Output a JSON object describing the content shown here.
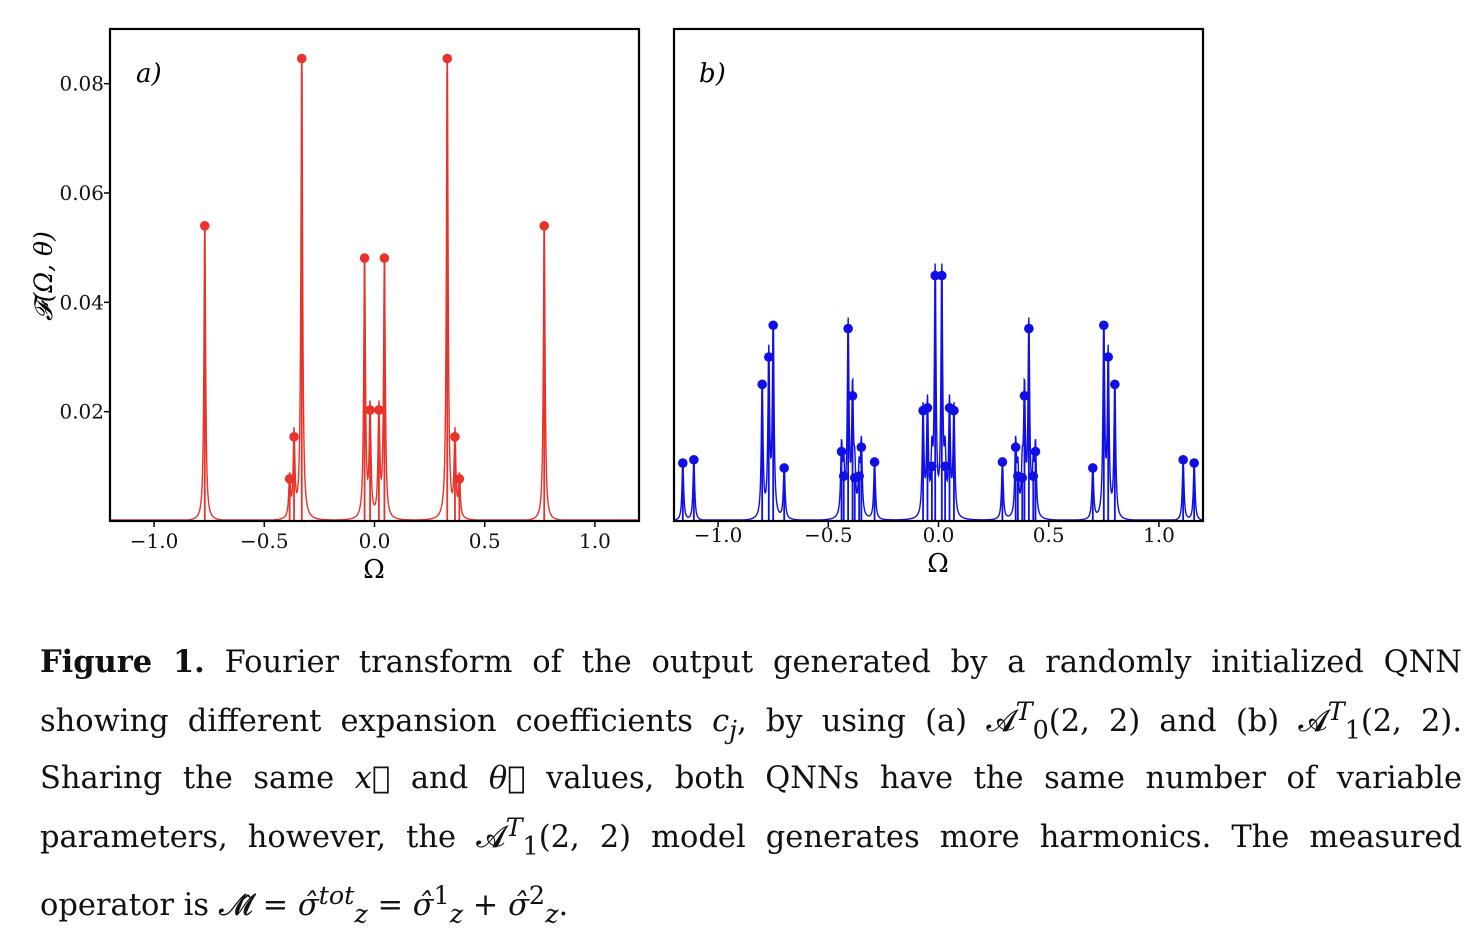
{
  "chart_data": [
    {
      "type": "stem",
      "panel_label": "a)",
      "xlabel": "Ω",
      "ylabel": "𝓕(Ω, θ)",
      "xlim": [
        -1.2,
        1.2
      ],
      "ylim": [
        0.0,
        0.09
      ],
      "xticks": [
        -1.0,
        -0.5,
        0.0,
        0.5,
        1.0
      ],
      "xtick_labels": [
        "−1.0",
        "−0.5",
        "0.0",
        "0.5",
        "1.0"
      ],
      "yticks": [
        0.02,
        0.04,
        0.06,
        0.08
      ],
      "ytick_labels": [
        "0.02",
        "0.04",
        "0.06",
        "0.08"
      ],
      "color": "#e8322a",
      "series": [
        {
          "x": [
            -0.77,
            -0.385,
            -0.365,
            -0.33,
            -0.045,
            -0.02,
            0.02,
            0.045,
            0.33,
            0.365,
            0.385,
            0.77
          ],
          "values": [
            0.054,
            0.0077,
            0.0154,
            0.0846,
            0.0481,
            0.0203,
            0.0203,
            0.0481,
            0.0846,
            0.0154,
            0.0077,
            0.054
          ]
        }
      ]
    },
    {
      "type": "stem",
      "panel_label": "b)",
      "xlabel": "Ω",
      "xlim": [
        -1.2,
        1.2
      ],
      "ylim": [
        0.0,
        0.09
      ],
      "xticks": [
        -1.0,
        -0.5,
        0.0,
        0.5,
        1.0
      ],
      "xtick_labels": [
        "−1.0",
        "−0.5",
        "0.0",
        "0.5",
        "1.0"
      ],
      "color": "#1010e6",
      "series": [
        {
          "x": [
            -1.16,
            -1.11,
            -0.8,
            -0.77,
            -0.75,
            -0.7,
            -0.44,
            -0.43,
            -0.41,
            -0.39,
            -0.38,
            -0.36,
            -0.35,
            -0.29,
            -0.07,
            -0.05,
            -0.03,
            -0.015,
            0.015,
            0.03,
            0.05,
            0.07,
            0.29,
            0.35,
            0.36,
            0.38,
            0.39,
            0.41,
            0.43,
            0.44,
            0.7,
            0.75,
            0.77,
            0.8,
            1.11,
            1.16
          ],
          "values": [
            0.0106,
            0.0112,
            0.025,
            0.03,
            0.0358,
            0.0097,
            0.0127,
            0.0082,
            0.0352,
            0.0229,
            0.0079,
            0.0082,
            0.0135,
            0.0108,
            0.0202,
            0.0207,
            0.01,
            0.0449,
            0.0449,
            0.01,
            0.0207,
            0.0202,
            0.0108,
            0.0135,
            0.0082,
            0.0079,
            0.0229,
            0.0352,
            0.0082,
            0.0127,
            0.0097,
            0.0358,
            0.03,
            0.025,
            0.0112,
            0.0106
          ]
        }
      ]
    }
  ],
  "caption": {
    "figure_label": "Figure 1.",
    "text_1": " Fourier transform of the output generated by a randomly initialized QNN showing different expansion coefficients ",
    "c_symbol": "c",
    "c_subscript": "j",
    "text_2": ", by using (a) ",
    "model_a": "𝓐",
    "model_a_sup": "T",
    "model_a_sub": "0",
    "model_a_args": "(2, 2)",
    "text_3": " and (b) ",
    "model_b": "𝓐",
    "model_b_sup": "T",
    "model_b_sub": "1",
    "model_b_args": "(2, 2)",
    "text_4": ". Sharing the same ",
    "x_vec": "x⃗",
    "text_5": " and ",
    "theta_vec": "θ⃗",
    "text_6": " values, both QNNs have the same number of variable parameters, however, the ",
    "model_c": "𝓐",
    "model_c_sup": "T",
    "model_c_sub": "1",
    "model_c_args": "(2, 2)",
    "text_7": " model generates more harmonics. The measured operator is ",
    "op_M": "𝓜̂",
    "eq_1": " = ",
    "op_sigma_tot": "σ̂",
    "op_sigma_tot_sup": "tot",
    "op_sigma_tot_sub": "z",
    "eq_2": " = ",
    "op_sigma_1": "σ̂",
    "op_sigma_1_sup": "1",
    "op_sigma_1_sub": "z",
    "plus": " + ",
    "op_sigma_2": "σ̂",
    "op_sigma_2_sup": "2",
    "op_sigma_2_sub": "z",
    "end": "."
  }
}
